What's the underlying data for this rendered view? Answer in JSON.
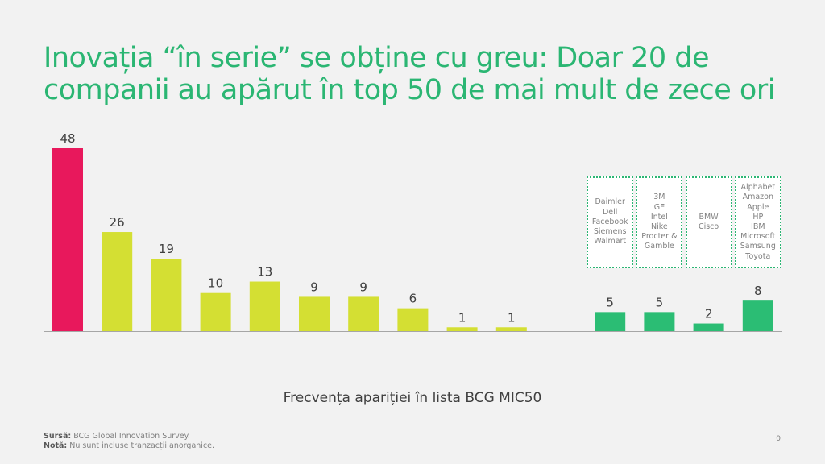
{
  "title": "Inovația “în serie” se obține cu greu: Doar 20 de companii au apărut în top 50 de mai mult de zece ori",
  "chart_data": {
    "type": "bar",
    "title": "",
    "xlabel": "Frecvența apariției în lista BCG MIC50",
    "ylabel": "",
    "ylim": [
      0,
      48
    ],
    "grid": false,
    "values": [
      48,
      26,
      19,
      10,
      13,
      9,
      9,
      6,
      1,
      1,
      null,
      5,
      5,
      2,
      8
    ],
    "colors": [
      "#e8185c",
      "#d4df33",
      "#d4df33",
      "#d4df33",
      "#d4df33",
      "#d4df33",
      "#d4df33",
      "#d4df33",
      "#d4df33",
      "#d4df33",
      null,
      "#2bbd74",
      "#2bbd74",
      "#2bbd74",
      "#2bbd74"
    ],
    "annotations": [
      {
        "bar_index": 11,
        "companies": [
          "Daimler",
          "Dell",
          "Facebook",
          "Siemens",
          "Walmart"
        ]
      },
      {
        "bar_index": 12,
        "companies": [
          "3M",
          "GE",
          "Intel",
          "Nike",
          "Procter &",
          "Gamble"
        ]
      },
      {
        "bar_index": 13,
        "companies": [
          "BMW",
          "Cisco"
        ]
      },
      {
        "bar_index": 14,
        "companies": [
          "Alphabet",
          "Amazon",
          "Apple",
          "HP",
          "IBM",
          "Microsoft",
          "Samsung",
          "Toyota"
        ]
      }
    ]
  },
  "footer": {
    "source_label": "Sursă:",
    "source_text": "BCG Global Innovation Survey.",
    "note_label": "Notă:",
    "note_text": "Nu sunt incluse tranzacții anorganice.",
    "page_number": "0"
  }
}
